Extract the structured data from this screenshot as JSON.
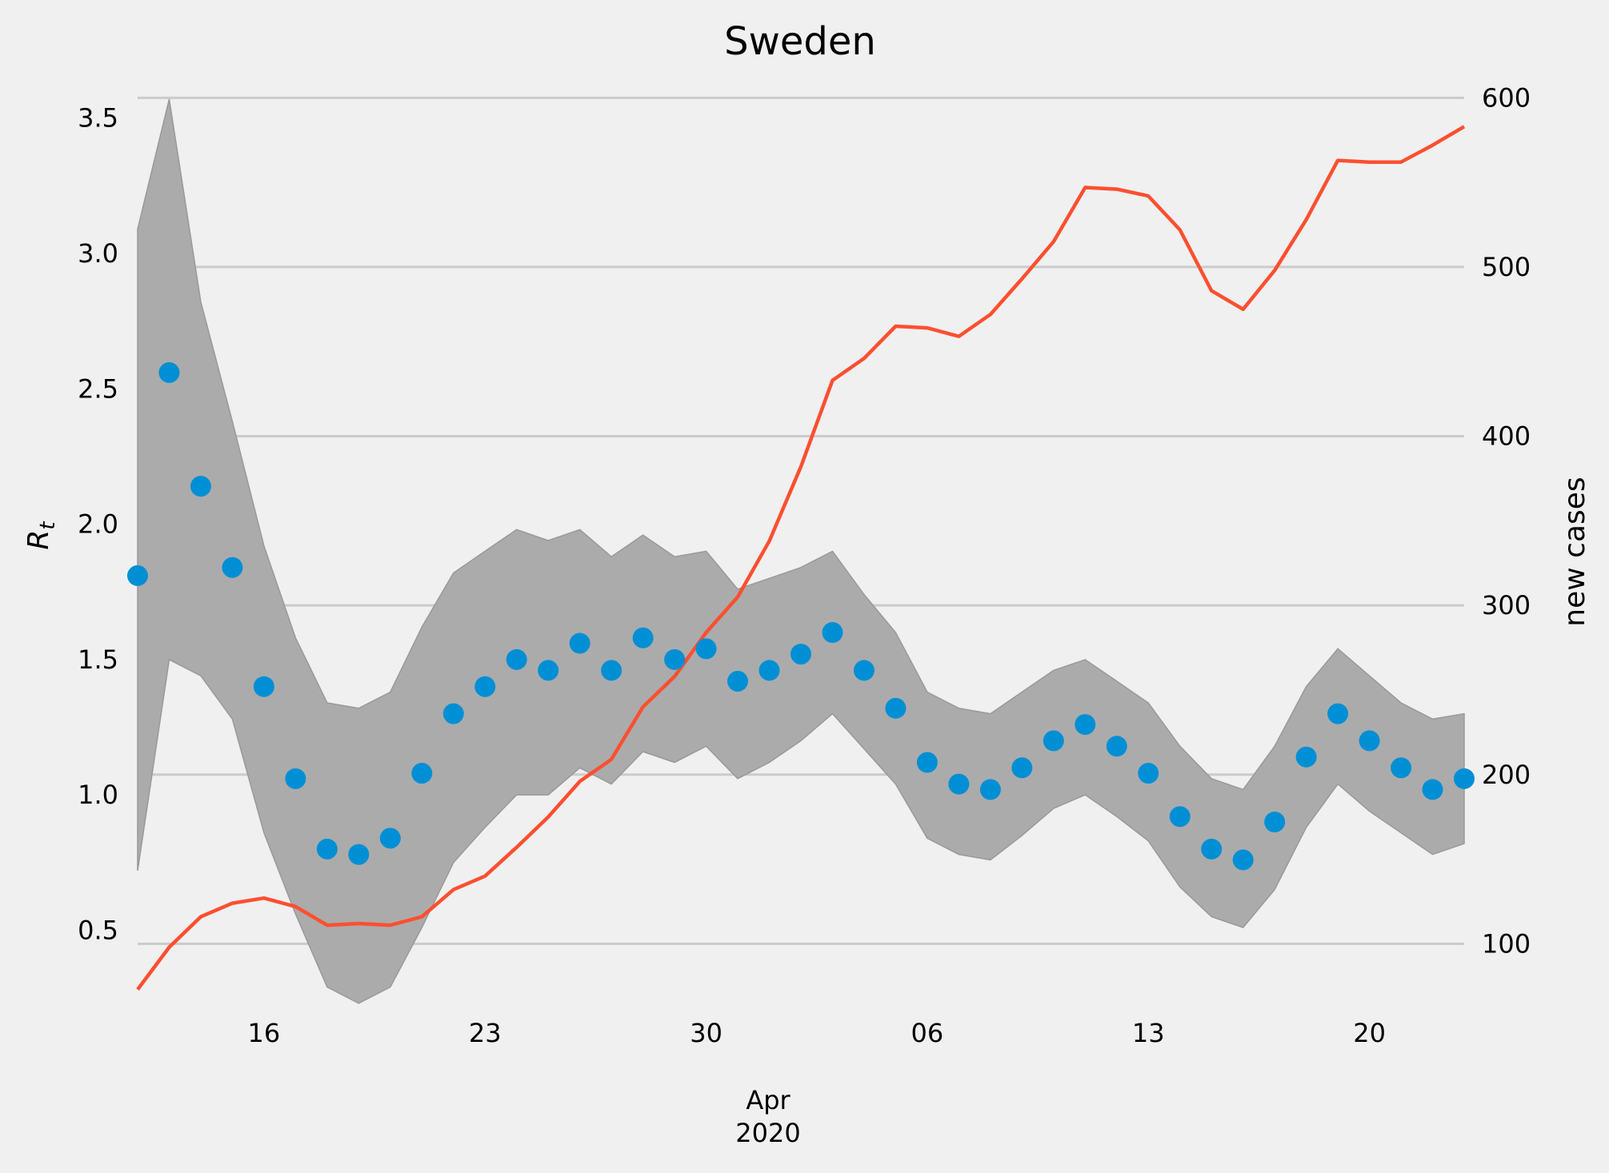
{
  "chart_data": {
    "type": "line",
    "title": "Sweden",
    "ylabel_left": "R",
    "ylabel_left_sub": "t",
    "ylabel_right": "new cases",
    "xlabel_month": "Apr",
    "xlabel_year": "2020",
    "x": [
      "2020-03-12",
      "2020-03-13",
      "2020-03-14",
      "2020-03-15",
      "2020-03-16",
      "2020-03-17",
      "2020-03-18",
      "2020-03-19",
      "2020-03-20",
      "2020-03-21",
      "2020-03-22",
      "2020-03-23",
      "2020-03-24",
      "2020-03-25",
      "2020-03-26",
      "2020-03-27",
      "2020-03-28",
      "2020-03-29",
      "2020-03-30",
      "2020-03-31",
      "2020-04-01",
      "2020-04-02",
      "2020-04-03",
      "2020-04-04",
      "2020-04-05",
      "2020-04-06",
      "2020-04-07",
      "2020-04-08",
      "2020-04-09",
      "2020-04-10",
      "2020-04-11",
      "2020-04-12",
      "2020-04-13",
      "2020-04-14",
      "2020-04-15",
      "2020-04-16",
      "2020-04-17",
      "2020-04-18",
      "2020-04-19",
      "2020-04-20",
      "2020-04-21",
      "2020-04-22",
      "2020-04-23"
    ],
    "x_ticks": [
      "16",
      "23",
      "30",
      "06",
      "13",
      "20"
    ],
    "x_tick_dates": [
      "2020-03-16",
      "2020-03-23",
      "2020-03-30",
      "2020-04-06",
      "2020-04-13",
      "2020-04-20"
    ],
    "x_range": [
      "2020-03-12",
      "2020-04-23"
    ],
    "y_left_ticks": [
      0.5,
      1.0,
      1.5,
      2.0,
      2.5,
      3.0,
      3.5
    ],
    "y_left_tick_labels": [
      "0.5",
      "1.0",
      "1.5",
      "2.0",
      "2.5",
      "3.0",
      "3.5"
    ],
    "y_left_range": [
      0.2,
      3.7
    ],
    "y_right_ticks": [
      100,
      200,
      300,
      400,
      500,
      600
    ],
    "y_right_tick_labels": [
      "100",
      "200",
      "300",
      "400",
      "500",
      "600"
    ],
    "y_right_range": [
      60,
      620
    ],
    "grid": "horizontal",
    "series": [
      {
        "name": "Rt",
        "kind": "scatter",
        "color": "#008fd5",
        "values": [
          1.81,
          2.56,
          2.14,
          1.84,
          1.4,
          1.06,
          0.8,
          0.78,
          0.84,
          1.08,
          1.3,
          1.4,
          1.5,
          1.46,
          1.56,
          1.46,
          1.58,
          1.5,
          1.54,
          1.42,
          1.46,
          1.52,
          1.6,
          1.46,
          1.32,
          1.12,
          1.04,
          1.02,
          1.1,
          1.2,
          1.26,
          1.18,
          1.08,
          0.92,
          0.8,
          0.76,
          0.9,
          1.14,
          1.3,
          1.2,
          1.1,
          1.02,
          1.06
        ]
      },
      {
        "name": "Rt interval",
        "kind": "band",
        "color": "#ababab",
        "lower": [
          0.72,
          1.5,
          1.44,
          1.28,
          0.86,
          0.56,
          0.29,
          0.23,
          0.29,
          0.51,
          0.75,
          0.88,
          1.0,
          1.0,
          1.1,
          1.04,
          1.16,
          1.12,
          1.18,
          1.06,
          1.12,
          1.2,
          1.3,
          1.17,
          1.04,
          0.84,
          0.78,
          0.76,
          0.85,
          0.95,
          1.0,
          0.92,
          0.83,
          0.66,
          0.55,
          0.51,
          0.65,
          0.88,
          1.04,
          0.94,
          0.86,
          0.78,
          0.82
        ],
        "upper": [
          3.09,
          3.57,
          2.82,
          2.38,
          1.92,
          1.58,
          1.34,
          1.32,
          1.38,
          1.62,
          1.82,
          1.9,
          1.98,
          1.94,
          1.98,
          1.88,
          1.96,
          1.88,
          1.9,
          1.76,
          1.8,
          1.84,
          1.9,
          1.74,
          1.6,
          1.38,
          1.32,
          1.3,
          1.38,
          1.46,
          1.5,
          1.42,
          1.34,
          1.18,
          1.06,
          1.02,
          1.18,
          1.4,
          1.54,
          1.44,
          1.34,
          1.28,
          1.3
        ]
      },
      {
        "name": "new cases",
        "kind": "line",
        "color": "#fc4f30",
        "values": [
          73,
          98,
          116,
          124,
          127,
          122,
          111,
          112,
          111,
          116,
          132,
          140,
          157,
          175,
          196,
          209,
          240,
          258,
          284,
          305,
          338,
          382,
          433,
          446,
          465,
          464,
          459,
          472,
          493,
          515,
          547,
          546,
          542,
          522,
          486,
          475,
          498,
          528,
          563,
          562,
          562,
          572,
          583
        ]
      }
    ]
  }
}
